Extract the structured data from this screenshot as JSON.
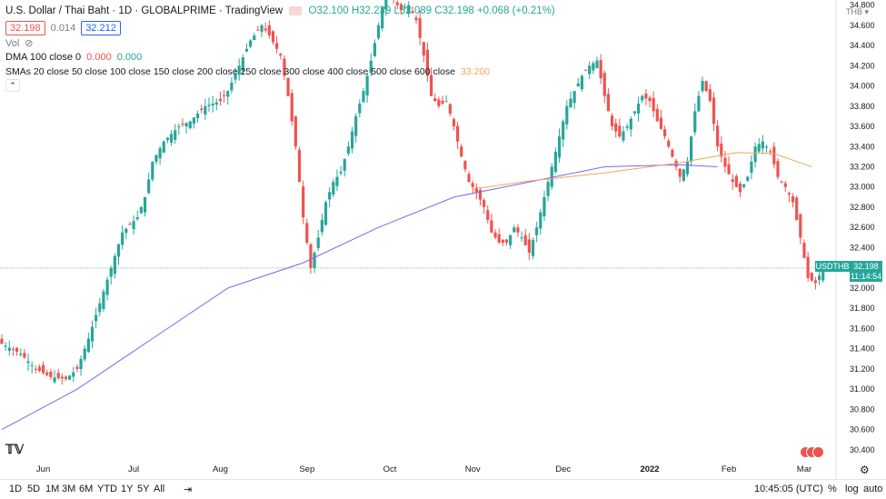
{
  "header": {
    "title": "U.S. Dollar / Thai Baht · 1D · GLOBALPRIME · TradingView",
    "ohlc": {
      "o": "O32.100",
      "h": "H32.239",
      "l": "L32.089",
      "c": "C32.198",
      "chg": "+0.068 (+0.21%)"
    },
    "bid": "32.198",
    "spread": "0.014",
    "ask": "32.212"
  },
  "indicators": {
    "vol": "Vol",
    "dma_label": "DMA 100 close 0",
    "dma_v1": "0.000",
    "dma_v2": "0.000",
    "sma_label": "SMAs 20 close 50 close 100 close 150 close 200 close 250 close 300 close 400 close 500 close 600 close",
    "sma_value": "33.200"
  },
  "axis": {
    "currency": "THB",
    "symbol": "USDTHB",
    "last_price": "32.198",
    "countdown": "11:14:54"
  },
  "toolbar": {
    "ranges": [
      "1D",
      "5D",
      "1M",
      "3M",
      "6M",
      "YTD",
      "1Y",
      "5Y",
      "All"
    ],
    "time": "10:45:05 (UTC)",
    "pct": "%",
    "log": "log",
    "auto": "auto"
  },
  "colors": {
    "up": "#26a69a",
    "down": "#ef5350",
    "ma_blue": "#7b68ee",
    "ma_orange": "#f7a35c"
  },
  "chart_data": {
    "type": "candlestick",
    "ylim": [
      30.3,
      34.85
    ],
    "yticks": [
      30.4,
      30.6,
      30.8,
      31.0,
      31.2,
      31.4,
      31.6,
      31.8,
      32.0,
      32.2,
      32.4,
      32.6,
      32.8,
      33.0,
      33.2,
      33.4,
      33.6,
      33.8,
      34.0,
      34.2,
      34.4,
      34.6,
      34.8
    ],
    "x_labels": [
      "Jun",
      "Jul",
      "Aug",
      "Sep",
      "Oct",
      "Nov",
      "Dec",
      "2022",
      "Feb",
      "Mar"
    ],
    "x_label_index": [
      11,
      35,
      58,
      81,
      103,
      125,
      149,
      172,
      193,
      213
    ],
    "waypoints": [
      [
        0,
        31.45
      ],
      [
        5,
        31.35
      ],
      [
        9,
        31.2
      ],
      [
        13,
        31.12
      ],
      [
        17,
        31.1
      ],
      [
        20,
        31.2
      ],
      [
        23,
        31.5
      ],
      [
        26,
        31.85
      ],
      [
        29,
        32.2
      ],
      [
        32,
        32.55
      ],
      [
        36,
        32.7
      ],
      [
        38,
        32.9
      ],
      [
        40,
        33.25
      ],
      [
        43,
        33.45
      ],
      [
        47,
        33.6
      ],
      [
        50,
        33.65
      ],
      [
        54,
        33.8
      ],
      [
        58,
        33.85
      ],
      [
        60,
        33.95
      ],
      [
        63,
        34.2
      ],
      [
        66,
        34.45
      ],
      [
        69,
        34.6
      ],
      [
        71,
        34.5
      ],
      [
        74,
        34.3
      ],
      [
        76,
        33.9
      ],
      [
        78,
        33.4
      ],
      [
        80,
        32.7
      ],
      [
        82,
        32.2
      ],
      [
        84,
        32.5
      ],
      [
        86,
        32.85
      ],
      [
        88,
        33.05
      ],
      [
        90,
        33.15
      ],
      [
        92,
        33.4
      ],
      [
        94,
        33.7
      ],
      [
        96,
        33.95
      ],
      [
        98,
        34.25
      ],
      [
        100,
        34.6
      ],
      [
        102,
        34.95
      ],
      [
        104,
        34.85
      ],
      [
        106,
        34.75
      ],
      [
        108,
        34.8
      ],
      [
        110,
        34.65
      ],
      [
        112,
        34.3
      ],
      [
        114,
        33.9
      ],
      [
        116,
        33.8
      ],
      [
        118,
        33.85
      ],
      [
        120,
        33.6
      ],
      [
        122,
        33.3
      ],
      [
        124,
        33.05
      ],
      [
        126,
        32.95
      ],
      [
        128,
        32.8
      ],
      [
        130,
        32.55
      ],
      [
        132,
        32.45
      ],
      [
        134,
        32.45
      ],
      [
        136,
        32.6
      ],
      [
        138,
        32.5
      ],
      [
        140,
        32.35
      ],
      [
        142,
        32.6
      ],
      [
        144,
        32.9
      ],
      [
        146,
        33.2
      ],
      [
        148,
        33.5
      ],
      [
        150,
        33.8
      ],
      [
        152,
        33.95
      ],
      [
        154,
        34.1
      ],
      [
        156,
        34.2
      ],
      [
        158,
        34.25
      ],
      [
        160,
        33.9
      ],
      [
        162,
        33.6
      ],
      [
        164,
        33.5
      ],
      [
        166,
        33.6
      ],
      [
        168,
        33.75
      ],
      [
        170,
        33.9
      ],
      [
        172,
        33.85
      ],
      [
        174,
        33.65
      ],
      [
        176,
        33.5
      ],
      [
        178,
        33.3
      ],
      [
        180,
        33.1
      ],
      [
        182,
        33.25
      ],
      [
        184,
        33.75
      ],
      [
        186,
        34.05
      ],
      [
        188,
        33.85
      ],
      [
        190,
        33.4
      ],
      [
        192,
        33.2
      ],
      [
        194,
        33.05
      ],
      [
        196,
        32.95
      ],
      [
        198,
        33.1
      ],
      [
        200,
        33.4
      ],
      [
        202,
        33.45
      ],
      [
        204,
        33.35
      ],
      [
        206,
        33.1
      ],
      [
        208,
        33.0
      ],
      [
        210,
        32.85
      ],
      [
        212,
        32.5
      ],
      [
        214,
        32.1
      ],
      [
        216,
        32.05
      ],
      [
        218,
        32.198
      ]
    ],
    "ma_blue": {
      "name": "DMA 100 close 0",
      "points": [
        [
          0,
          30.6
        ],
        [
          20,
          31.0
        ],
        [
          40,
          31.5
        ],
        [
          60,
          32.0
        ],
        [
          80,
          32.25
        ],
        [
          100,
          32.6
        ],
        [
          120,
          32.9
        ],
        [
          140,
          33.05
        ],
        [
          160,
          33.2
        ],
        [
          180,
          33.22
        ],
        [
          190,
          33.2
        ]
      ]
    },
    "ma_orange": {
      "name": "SMAs",
      "points": [
        [
          125,
          32.98
        ],
        [
          140,
          33.06
        ],
        [
          160,
          33.14
        ],
        [
          180,
          33.24
        ],
        [
          195,
          33.34
        ],
        [
          205,
          33.33
        ],
        [
          215,
          33.2
        ]
      ]
    },
    "last_price": 32.198
  }
}
